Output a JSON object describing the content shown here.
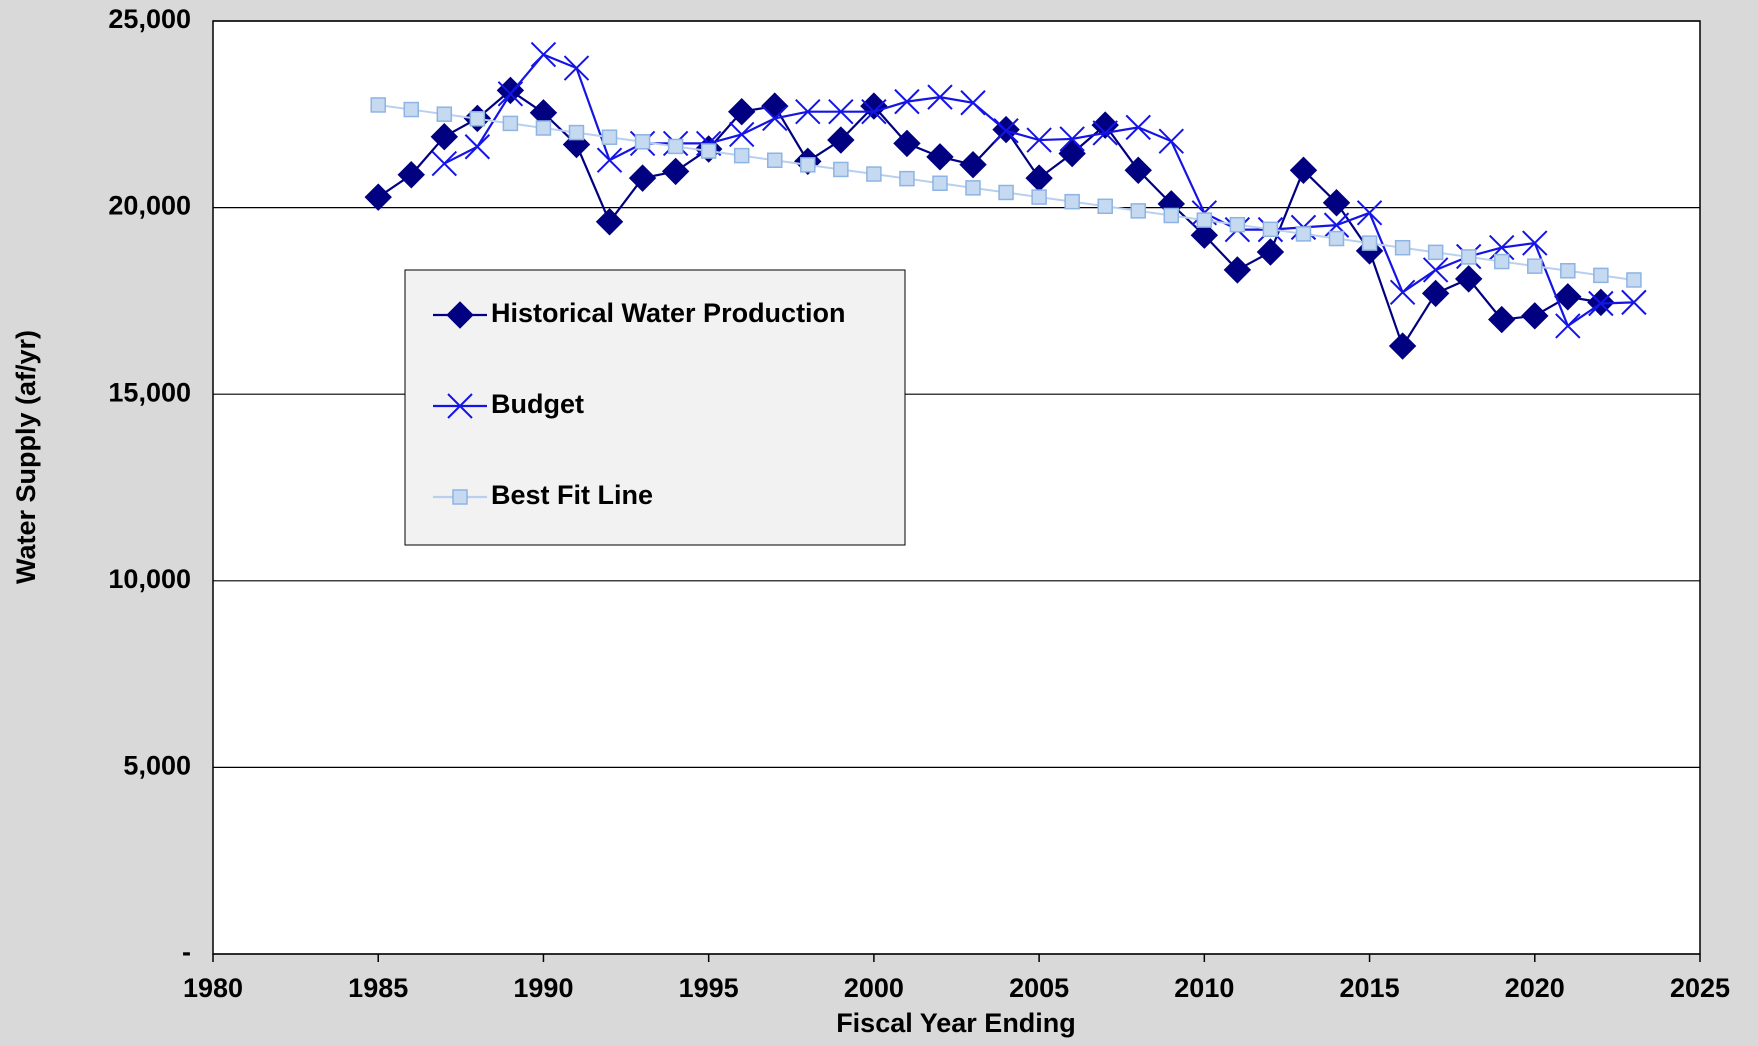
{
  "chart_data": {
    "type": "line",
    "x_label": "Fiscal Year Ending",
    "y_label": "Water Supply (af/yr)",
    "x": [
      1985,
      1986,
      1987,
      1988,
      1989,
      1990,
      1991,
      1992,
      1993,
      1994,
      1995,
      1996,
      1997,
      1998,
      1999,
      2000,
      2001,
      2002,
      2003,
      2004,
      2005,
      2006,
      2007,
      2008,
      2009,
      2010,
      2011,
      2012,
      2013,
      2014,
      2015,
      2016,
      2017,
      2018,
      2019,
      2020,
      2021,
      2022,
      2023
    ],
    "series": [
      {
        "name": "Historical Water Production",
        "color": "#000080",
        "marker": "diamond",
        "values": [
          20280,
          20880,
          21900,
          22390,
          23140,
          22540,
          21690,
          19620,
          20790,
          20970,
          21570,
          22570,
          22720,
          21240,
          21810,
          22720,
          21720,
          21360,
          21150,
          22090,
          20790,
          21450,
          22210,
          21000,
          20100,
          19260,
          18330,
          18810,
          21000,
          20130,
          18840,
          16290,
          17700,
          18090,
          17000,
          17100,
          17610,
          17460,
          null
        ]
      },
      {
        "name": "Budget",
        "color": "#1414e6",
        "marker": "x",
        "values": [
          null,
          null,
          21180,
          21630,
          23050,
          24100,
          23740,
          21270,
          21720,
          21720,
          21720,
          21960,
          22390,
          22570,
          22570,
          22570,
          22840,
          22960,
          22810,
          22060,
          21810,
          21840,
          22000,
          22150,
          21780,
          19860,
          19410,
          19410,
          19470,
          19530,
          19860,
          17730,
          18330,
          18690,
          18930,
          19050,
          16830,
          17430,
          17460
        ]
      },
      {
        "name": "Best Fit Line",
        "color": "#b8d0ee",
        "marker": "square",
        "values": [
          22750,
          22627,
          22503,
          22380,
          22256,
          22133,
          22010,
          21886,
          21763,
          21639,
          21516,
          21393,
          21269,
          21146,
          21022,
          20899,
          20776,
          20652,
          20529,
          20405,
          20282,
          20159,
          20035,
          19912,
          19788,
          19665,
          19542,
          19418,
          19295,
          19171,
          19048,
          18925,
          18801,
          18678,
          18554,
          18431,
          18308,
          18184,
          18061
        ]
      }
    ],
    "xlim": [
      1980,
      2025
    ],
    "xticks": [
      1980,
      1985,
      1990,
      1995,
      2000,
      2005,
      2010,
      2015,
      2020,
      2025
    ],
    "ylim": [
      0,
      25000
    ],
    "yticks": [
      {
        "value": 0,
        "label": "-"
      },
      {
        "value": 5000,
        "label": "5,000"
      },
      {
        "value": 10000,
        "label": "10,000"
      },
      {
        "value": 15000,
        "label": "15,000"
      },
      {
        "value": 20000,
        "label": "20,000"
      },
      {
        "value": 25000,
        "label": "25,000"
      }
    ],
    "grid": true
  }
}
